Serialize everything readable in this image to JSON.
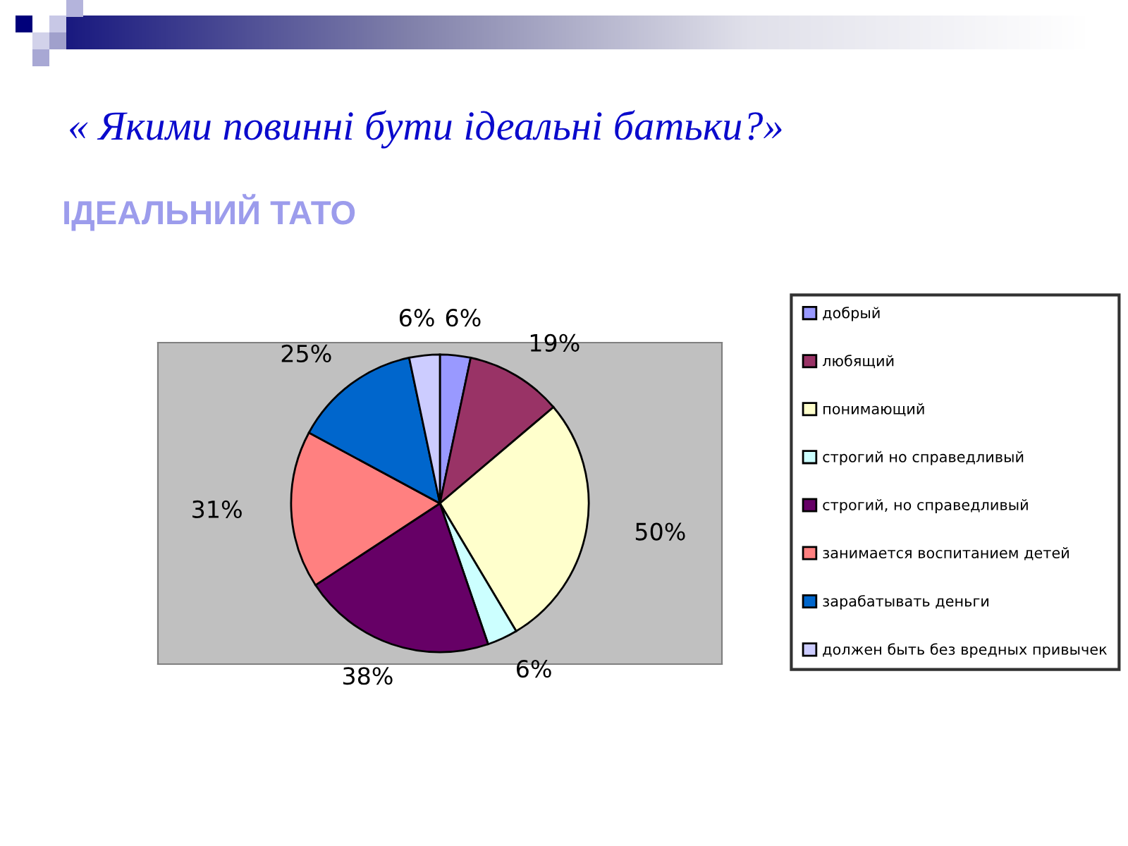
{
  "chart_data": {
    "type": "pie",
    "title": "« Якими повинні бути ідеальні батьки?»",
    "subtitle": "ІДЕАЛЬНИЙ ТАТО",
    "categories": [
      "добрый",
      "любящий",
      "понимающий",
      "строгий но справедливый",
      "строгий, но справедливый",
      "занимается воспитанием детей",
      "зарабатывать деньги",
      "должен быть без вредных привычек"
    ],
    "values": [
      6,
      19,
      50,
      6,
      38,
      31,
      25,
      6
    ],
    "value_labels": [
      "6%",
      "19%",
      "50%",
      "6%",
      "38%",
      "31%",
      "25%",
      "6%"
    ],
    "colors": [
      "#9999ff",
      "#993366",
      "#ffffcc",
      "#ccffff",
      "#660066",
      "#ff8080",
      "#0066cc",
      "#ccccff"
    ],
    "legend": "right"
  }
}
